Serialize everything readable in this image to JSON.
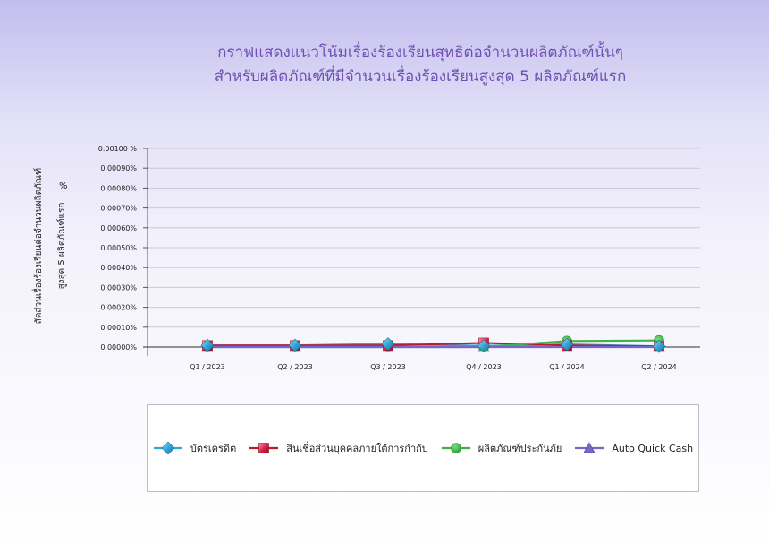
{
  "chart_data": {
    "type": "line",
    "title_lines": [
      "กราฟแสดงแนวโน้มเรื่องร้องเรียนสุทธิต่อจำนวนผลิตภัณฑ์นั้นๆ",
      "สำหรับผลิตภัณฑ์ที่มีจำนวนเรื่องร้องเรียนสูงสุด 5 ผลิตภัณฑ์แรก"
    ],
    "ylabel_lines": [
      "สัดส่วนเรื่องร้องเรียนต่อจำนวนผลิตภัณฑ์",
      "สูงสุด 5 ผลิตภัณฑ์แรก"
    ],
    "ylabel_unit": "%",
    "categories": [
      "Q1 / 2023",
      "Q2 / 2023",
      "Q3 / 2023",
      "Q4 / 2023",
      "Q1 / 2024",
      "Q2 / 2024"
    ],
    "ylim": [
      0,
      0.001
    ],
    "yticks": [
      "0.00000%",
      "0.00010%",
      "0.00020%",
      "0.00030%",
      "0.00040%",
      "0.00050%",
      "0.00060%",
      "0.00070%",
      "0.00080%",
      "0.00090%",
      "0.00100 %"
    ],
    "grid": true,
    "legend_position": "bottom",
    "series": [
      {
        "name": "บัตรเครดิต",
        "color": "#31a6d4",
        "marker": "diamond",
        "values": [
          8e-06,
          8e-06,
          1.55e-05,
          5.5e-06,
          1.3e-05,
          3.5e-06
        ]
      },
      {
        "name": "สินเชื่อส่วนบุคคลภายใต้การกำกับ",
        "color": "#c0182d",
        "marker": "square",
        "values": [
          7.5e-06,
          7.5e-06,
          7.5e-06,
          2.05e-05,
          7.5e-06,
          3e-06
        ]
      },
      {
        "name": "ผลิตภัณฑ์ประกันภัย",
        "color": "#3fb24a",
        "marker": "circle",
        "values": [
          0,
          0,
          0,
          0,
          3e-05,
          3.3e-05
        ]
      },
      {
        "name": "Auto Quick Cash",
        "color": "#7a63c9",
        "marker": "triangle",
        "values": [
          0,
          0,
          0,
          0,
          0,
          0
        ]
      }
    ]
  }
}
